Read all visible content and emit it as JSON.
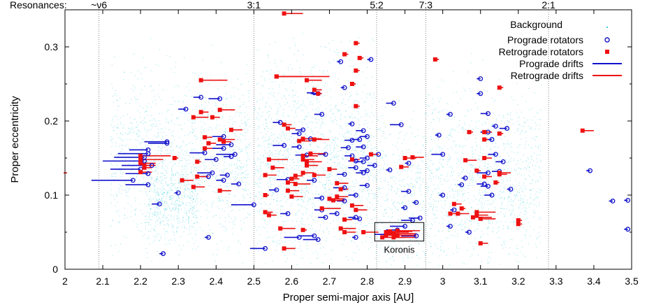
{
  "chart_data": {
    "type": "scatter",
    "xlabel": "Proper semi-major axis [AU]",
    "ylabel": "Proper eccentricity",
    "xlim": [
      2.0,
      3.5
    ],
    "ylim": [
      0.0,
      0.35
    ],
    "xticks": [
      "2",
      "2.1",
      "2.2",
      "2.3",
      "2.4",
      "2.5",
      "2.6",
      "2.7",
      "2.8",
      "2.9",
      "3",
      "3.1",
      "3.2",
      "3.3",
      "3.4",
      "3.5"
    ],
    "yticks": [
      "0",
      "0.1",
      "0.2",
      "0.3"
    ],
    "grid": false,
    "legend_position": "top-right",
    "resonances_label": "Resonances:",
    "resonances": [
      {
        "label": "~ν6",
        "a": 2.09
      },
      {
        "label": "3:1",
        "a": 2.5
      },
      {
        "label": "5:2",
        "a": 2.825
      },
      {
        "label": "7:3",
        "a": 2.955
      },
      {
        "label": "2:1",
        "a": 3.28
      }
    ],
    "annotation": {
      "text": "Koronis",
      "box_x": [
        2.82,
        2.95
      ],
      "box_y": [
        0.038,
        0.063
      ]
    },
    "colors": {
      "background": "#33ccdd",
      "prograde": "#1111cc",
      "retrograde": "#ee1111"
    },
    "series": [
      {
        "name": "Background",
        "marker": "dot"
      },
      {
        "name": "Prograde rotators",
        "marker": "circle"
      },
      {
        "name": "Retrograde rotators",
        "marker": "square"
      },
      {
        "name": "Prograde drifts",
        "marker": "line"
      },
      {
        "name": "Retrograde drifts",
        "marker": "line"
      }
    ],
    "prograde": [
      [
        2.27,
        0.172,
        2.21
      ],
      [
        2.27,
        0.17,
        2.22
      ],
      [
        2.22,
        0.161,
        2.17
      ],
      [
        2.22,
        0.156,
        2.14
      ],
      [
        2.21,
        0.151,
        2.13
      ],
      [
        2.21,
        0.146,
        2.1
      ],
      [
        2.23,
        0.14,
        2.15
      ],
      [
        2.2,
        0.135,
        2.12
      ],
      [
        2.18,
        0.12,
        2.07
      ],
      [
        2.22,
        0.129,
        2.16
      ],
      [
        2.22,
        0.114,
        2.16
      ],
      [
        2.25,
        0.088,
        2.23
      ],
      [
        2.3,
        0.103,
        2.29
      ],
      [
        2.32,
        0.216,
        2.3
      ],
      [
        2.36,
        0.232,
        2.34
      ],
      [
        2.41,
        0.23,
        2.38
      ],
      [
        2.37,
        0.157,
        2.33
      ],
      [
        2.4,
        0.148,
        2.37
      ],
      [
        2.39,
        0.13,
        2.35
      ],
      [
        2.42,
        0.12,
        2.4
      ],
      [
        2.43,
        0.127,
        2.41
      ],
      [
        2.44,
        0.168,
        2.4
      ],
      [
        2.45,
        0.155,
        2.4
      ],
      [
        2.46,
        0.115,
        2.44
      ],
      [
        2.42,
        0.179,
        2.39
      ],
      [
        2.38,
        0.125,
        2.36
      ],
      [
        2.38,
        0.043,
        2.37
      ],
      [
        2.26,
        0.021,
        2.25
      ],
      [
        2.42,
        0.163,
        2.39
      ],
      [
        2.44,
        0.152,
        2.42
      ],
      [
        2.53,
        0.028,
        2.49
      ],
      [
        2.5,
        0.087,
        2.44
      ],
      [
        2.57,
        0.198,
        2.55
      ],
      [
        2.58,
        0.167,
        2.55
      ],
      [
        2.59,
        0.121,
        2.56
      ],
      [
        2.56,
        0.107,
        2.54
      ],
      [
        2.59,
        0.075,
        2.57
      ],
      [
        2.62,
        0.183,
        2.6
      ],
      [
        2.63,
        0.188,
        2.61
      ],
      [
        2.65,
        0.176,
        2.63
      ],
      [
        2.62,
        0.165,
        2.6
      ],
      [
        2.64,
        0.154,
        2.61
      ],
      [
        2.66,
        0.238,
        2.64
      ],
      [
        2.67,
        0.237,
        2.65
      ],
      [
        2.68,
        0.209,
        2.66
      ],
      [
        2.69,
        0.155,
        2.67
      ],
      [
        2.66,
        0.12,
        2.64
      ],
      [
        2.68,
        0.096,
        2.66
      ],
      [
        2.68,
        0.08,
        2.66
      ],
      [
        2.69,
        0.07,
        2.67
      ],
      [
        2.67,
        0.04,
        2.63
      ],
      [
        2.66,
        0.045,
        2.62
      ],
      [
        2.62,
        0.043,
        2.58
      ],
      [
        2.73,
        0.28,
        2.72
      ],
      [
        2.74,
        0.245,
        2.73
      ],
      [
        2.76,
        0.196,
        2.75
      ],
      [
        2.76,
        0.174,
        2.74
      ],
      [
        2.75,
        0.164,
        2.73
      ],
      [
        2.76,
        0.153,
        2.74
      ],
      [
        2.78,
        0.175,
        2.76
      ],
      [
        2.79,
        0.165,
        2.77
      ],
      [
        2.77,
        0.146,
        2.75
      ],
      [
        2.74,
        0.128,
        2.72
      ],
      [
        2.77,
        0.137,
        2.75
      ],
      [
        2.79,
        0.13,
        2.77
      ],
      [
        2.74,
        0.11,
        2.71
      ],
      [
        2.77,
        0.1,
        2.75
      ],
      [
        2.74,
        0.092,
        2.72
      ],
      [
        2.72,
        0.075,
        2.7
      ],
      [
        2.77,
        0.07,
        2.75
      ],
      [
        2.79,
        0.145,
        2.77
      ],
      [
        2.8,
        0.15,
        2.78
      ],
      [
        2.8,
        0.179,
        2.78
      ],
      [
        2.79,
        0.187,
        2.77
      ],
      [
        2.8,
        0.133,
        2.78
      ],
      [
        2.8,
        0.113,
        2.78
      ],
      [
        2.78,
        0.068,
        2.76
      ],
      [
        2.77,
        0.043,
        2.76
      ],
      [
        2.81,
        0.283,
        2.8
      ],
      [
        2.82,
        0.14,
        2.8
      ],
      [
        2.87,
        0.224,
        2.85
      ],
      [
        2.89,
        0.195,
        2.86
      ],
      [
        2.83,
        0.155,
        2.81
      ],
      [
        2.86,
        0.134,
        2.85
      ],
      [
        2.91,
        0.143,
        2.9
      ],
      [
        2.91,
        0.105,
        2.89
      ],
      [
        2.92,
        0.066,
        2.89
      ],
      [
        2.9,
        0.058,
        2.86
      ],
      [
        2.88,
        0.053,
        2.85
      ],
      [
        2.85,
        0.047,
        2.82
      ],
      [
        2.9,
        0.083,
        2.89
      ],
      [
        2.93,
        0.09,
        2.92
      ],
      [
        2.94,
        0.069,
        2.91
      ],
      [
        2.93,
        0.045,
        2.89
      ],
      [
        3.02,
        0.209,
        3.01
      ],
      [
        2.99,
        0.181,
        2.98
      ],
      [
        3.0,
        0.155,
        2.97
      ],
      [
        3.0,
        0.1,
        2.99
      ],
      [
        3.05,
        0.114,
        3.04
      ],
      [
        3.06,
        0.123,
        3.05
      ],
      [
        3.03,
        0.08,
        3.02
      ],
      [
        3.02,
        0.058,
        3.01
      ],
      [
        3.07,
        0.05,
        3.06
      ],
      [
        3.1,
        0.257,
        3.09
      ],
      [
        3.1,
        0.237,
        3.09
      ],
      [
        3.12,
        0.21,
        3.1
      ],
      [
        3.12,
        0.185,
        3.1
      ],
      [
        3.14,
        0.193,
        3.13
      ],
      [
        3.13,
        0.175,
        3.11
      ],
      [
        3.14,
        0.155,
        3.12
      ],
      [
        3.16,
        0.145,
        3.14
      ],
      [
        3.15,
        0.132,
        3.13
      ],
      [
        3.12,
        0.13,
        3.09
      ],
      [
        3.12,
        0.112,
        3.1
      ],
      [
        3.11,
        0.115,
        3.09
      ],
      [
        3.13,
        0.1,
        3.11
      ],
      [
        3.17,
        0.19,
        3.15
      ],
      [
        3.18,
        0.108,
        3.17
      ],
      [
        3.39,
        0.133,
        3.38
      ],
      [
        3.45,
        0.092,
        3.44
      ],
      [
        3.49,
        0.093,
        3.48
      ],
      [
        3.49,
        0.054,
        3.48
      ]
    ],
    "retrograde": [
      [
        2.58,
        0.345,
        2.63
      ],
      [
        2.74,
        0.29,
        2.75
      ],
      [
        2.77,
        0.305,
        2.78
      ],
      [
        2.78,
        0.285,
        2.79
      ],
      [
        2.76,
        0.25,
        2.77
      ],
      [
        2.77,
        0.268,
        2.78
      ],
      [
        2.77,
        0.22,
        2.78
      ],
      [
        2.56,
        0.26,
        2.7
      ],
      [
        2.56,
        0.26,
        2.63
      ],
      [
        2.64,
        0.255,
        2.68
      ],
      [
        2.66,
        0.242,
        2.68
      ],
      [
        2.67,
        0.237,
        2.68
      ],
      [
        2.36,
        0.255,
        2.43
      ],
      [
        2.36,
        0.212,
        2.38
      ],
      [
        2.41,
        0.215,
        2.45
      ],
      [
        2.34,
        0.205,
        2.38
      ],
      [
        2.39,
        0.205,
        2.41
      ],
      [
        2.44,
        0.188,
        2.47
      ],
      [
        2.37,
        0.178,
        2.39
      ],
      [
        2.41,
        0.175,
        2.45
      ],
      [
        2.42,
        0.172,
        2.44
      ],
      [
        2.38,
        0.17,
        2.4
      ],
      [
        2.37,
        0.163,
        2.39
      ],
      [
        2.35,
        0.145,
        2.36
      ],
      [
        2.31,
        0.12,
        2.34
      ],
      [
        2.34,
        0.111,
        2.37
      ],
      [
        2.41,
        0.106,
        2.44
      ],
      [
        2.35,
        0.125,
        2.38
      ],
      [
        2.29,
        0.15,
        2.3
      ],
      [
        2.2,
        0.153,
        2.28
      ],
      [
        2.2,
        0.148,
        2.26
      ],
      [
        2.2,
        0.143,
        2.24
      ],
      [
        2.21,
        0.14,
        2.24
      ],
      [
        2.21,
        0.137,
        2.23
      ],
      [
        2.2,
        0.131,
        2.23
      ],
      [
        2.58,
        0.195,
        2.6
      ],
      [
        2.59,
        0.19,
        2.61
      ],
      [
        2.63,
        0.176,
        2.68
      ],
      [
        2.62,
        0.173,
        2.65
      ],
      [
        2.66,
        0.175,
        2.7
      ],
      [
        2.65,
        0.156,
        2.69
      ],
      [
        2.63,
        0.153,
        2.67
      ],
      [
        2.63,
        0.148,
        2.66
      ],
      [
        2.64,
        0.145,
        2.68
      ],
      [
        2.54,
        0.148,
        2.59
      ],
      [
        2.55,
        0.137,
        2.58
      ],
      [
        2.53,
        0.127,
        2.56
      ],
      [
        2.61,
        0.126,
        2.63
      ],
      [
        2.6,
        0.122,
        2.62
      ],
      [
        2.61,
        0.115,
        2.65
      ],
      [
        2.66,
        0.127,
        2.69
      ],
      [
        2.59,
        0.117,
        2.61
      ],
      [
        2.64,
        0.14,
        2.67
      ],
      [
        2.63,
        0.13,
        2.66
      ],
      [
        2.53,
        0.1,
        2.54
      ],
      [
        2.53,
        0.077,
        2.55
      ],
      [
        2.54,
        0.073,
        2.56
      ],
      [
        2.59,
        0.106,
        2.62
      ],
      [
        2.6,
        0.098,
        2.63
      ],
      [
        2.57,
        0.055,
        2.61
      ],
      [
        2.58,
        0.028,
        2.61
      ],
      [
        2.63,
        0.053,
        2.64
      ],
      [
        2.68,
        0.082,
        2.73
      ],
      [
        2.7,
        0.095,
        2.74
      ],
      [
        2.71,
        0.093,
        2.74
      ],
      [
        2.72,
        0.098,
        2.75
      ],
      [
        2.73,
        0.055,
        2.77
      ],
      [
        2.74,
        0.05,
        2.77
      ],
      [
        2.74,
        0.067,
        2.76
      ],
      [
        2.76,
        0.086,
        2.79
      ],
      [
        2.77,
        0.08,
        2.8
      ],
      [
        2.79,
        0.05,
        2.83
      ],
      [
        2.73,
        0.108,
        2.75
      ],
      [
        2.72,
        0.116,
        2.75
      ],
      [
        2.7,
        0.135,
        2.72
      ],
      [
        2.76,
        0.148,
        2.78
      ],
      [
        2.81,
        0.155,
        2.83
      ],
      [
        2.9,
        0.15,
        2.93
      ],
      [
        2.92,
        0.151,
        2.95
      ],
      [
        2.89,
        0.138,
        2.91
      ],
      [
        2.86,
        0.048,
        2.92
      ],
      [
        2.87,
        0.043,
        2.93
      ],
      [
        2.87,
        0.048,
        2.93
      ],
      [
        2.88,
        0.052,
        2.94
      ],
      [
        2.88,
        0.046,
        2.93
      ],
      [
        2.84,
        0.043,
        2.9
      ],
      [
        2.85,
        0.046,
        2.92
      ],
      [
        2.86,
        0.051,
        2.92
      ],
      [
        2.85,
        0.05,
        2.91
      ],
      [
        2.98,
        0.283,
        2.99
      ],
      [
        3.11,
        0.185,
        3.13
      ],
      [
        3.11,
        0.175,
        3.12
      ],
      [
        3.07,
        0.185,
        3.08
      ],
      [
        3.15,
        0.245,
        3.16
      ],
      [
        3.15,
        0.183,
        3.16
      ],
      [
        3.06,
        0.147,
        3.09
      ],
      [
        3.11,
        0.15,
        3.13
      ],
      [
        3.09,
        0.133,
        3.1
      ],
      [
        3.15,
        0.128,
        3.17
      ],
      [
        3.15,
        0.13,
        3.18
      ],
      [
        3.11,
        0.125,
        3.13
      ],
      [
        3.14,
        0.117,
        3.15
      ],
      [
        3.03,
        0.088,
        3.05
      ],
      [
        3.05,
        0.082,
        3.06
      ],
      [
        3.09,
        0.077,
        3.14
      ],
      [
        3.08,
        0.07,
        3.13
      ],
      [
        3.09,
        0.073,
        3.12
      ],
      [
        3.1,
        0.068,
        3.14
      ],
      [
        3.02,
        0.075,
        3.05
      ],
      [
        3.04,
        0.075,
        3.07
      ],
      [
        3.1,
        0.035,
        3.12
      ],
      [
        3.2,
        0.061,
        3.21
      ],
      [
        3.2,
        0.066,
        3.21
      ],
      [
        3.37,
        0.187,
        3.4
      ]
    ]
  },
  "legend": {
    "background": "Background",
    "prograde_rotators": "Prograde rotators",
    "retrograde_rotators": "Retrograde rotators",
    "prograde_drifts": "Prograde drifts",
    "retrograde_drifts": "Retrograde drifts"
  }
}
